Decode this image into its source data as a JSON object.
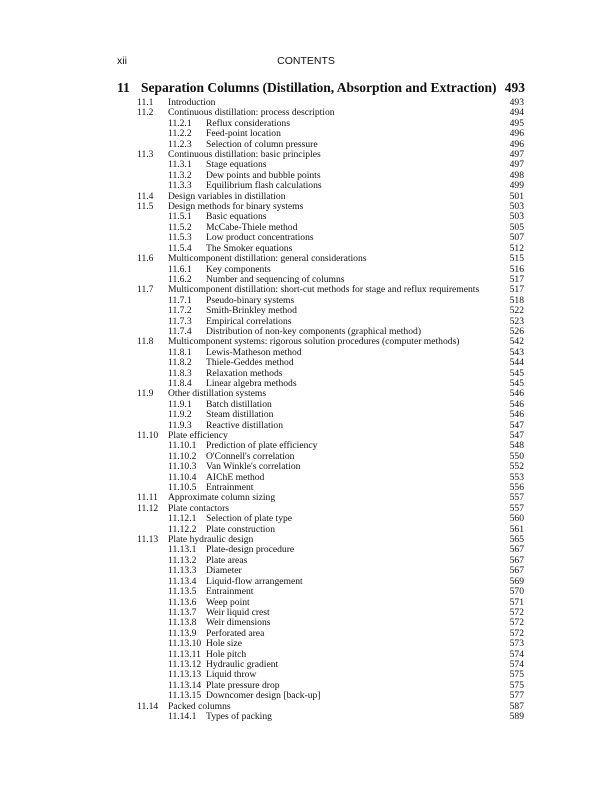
{
  "header": {
    "page_number": "xii",
    "running_title": "CONTENTS"
  },
  "chapter": {
    "number": "11",
    "title": "Separation Columns (Distillation, Absorption and Extraction)",
    "page": "493"
  },
  "entries": [
    {
      "level": 2,
      "num": "11.1",
      "title": "Introduction",
      "page": "493"
    },
    {
      "level": 2,
      "num": "11.2",
      "title": "Continuous distillation: process description",
      "page": "494"
    },
    {
      "level": 3,
      "num": "11.2.1",
      "title": "Reflux considerations",
      "page": "495"
    },
    {
      "level": 3,
      "num": "11.2.2",
      "title": "Feed-point location",
      "page": "496"
    },
    {
      "level": 3,
      "num": "11.2.3",
      "title": "Selection of column pressure",
      "page": "496"
    },
    {
      "level": 2,
      "num": "11.3",
      "title": "Continuous distillation: basic principles",
      "page": "497"
    },
    {
      "level": 3,
      "num": "11.3.1",
      "title": "Stage equations",
      "page": "497"
    },
    {
      "level": 3,
      "num": "11.3.2",
      "title": "Dew points and bubble points",
      "page": "498"
    },
    {
      "level": 3,
      "num": "11.3.3",
      "title": "Equilibrium flash calculations",
      "page": "499"
    },
    {
      "level": 2,
      "num": "11.4",
      "title": "Design variables in distillation",
      "page": "501"
    },
    {
      "level": 2,
      "num": "11.5",
      "title": "Design methods for binary systems",
      "page": "503"
    },
    {
      "level": 3,
      "num": "11.5.1",
      "title": "Basic equations",
      "page": "503"
    },
    {
      "level": 3,
      "num": "11.5.2",
      "title": "McCabe-Thiele method",
      "page": "505"
    },
    {
      "level": 3,
      "num": "11.5.3",
      "title": "Low product concentrations",
      "page": "507"
    },
    {
      "level": 3,
      "num": "11.5.4",
      "title": "The Smoker equations",
      "page": "512"
    },
    {
      "level": 2,
      "num": "11.6",
      "title": "Multicomponent distillation: general considerations",
      "page": "515"
    },
    {
      "level": 3,
      "num": "11.6.1",
      "title": "Key components",
      "page": "516"
    },
    {
      "level": 3,
      "num": "11.6.2",
      "title": "Number and sequencing of columns",
      "page": "517"
    },
    {
      "level": 2,
      "num": "11.7",
      "title": "Multicomponent distillation: short-cut methods for stage and reflux requirements",
      "page": "517"
    },
    {
      "level": 3,
      "num": "11.7.1",
      "title": "Pseudo-binary systems",
      "page": "518"
    },
    {
      "level": 3,
      "num": "11.7.2",
      "title": "Smith-Brinkley method",
      "page": "522"
    },
    {
      "level": 3,
      "num": "11.7.3",
      "title": "Empirical correlations",
      "page": "523"
    },
    {
      "level": 3,
      "num": "11.7.4",
      "title": "Distribution of non-key components (graphical method)",
      "page": "526"
    },
    {
      "level": 2,
      "num": "11.8",
      "title": "Multicomponent systems: rigorous solution procedures (computer methods)",
      "page": "542"
    },
    {
      "level": 3,
      "num": "11.8.1",
      "title": "Lewis-Matheson method",
      "page": "543"
    },
    {
      "level": 3,
      "num": "11.8.2",
      "title": "Thiele-Geddes method",
      "page": "544"
    },
    {
      "level": 3,
      "num": "11.8.3",
      "title": "Relaxation methods",
      "page": "545"
    },
    {
      "level": 3,
      "num": "11.8.4",
      "title": "Linear algebra methods",
      "page": "545"
    },
    {
      "level": 2,
      "num": "11.9",
      "title": "Other distillation systems",
      "page": "546"
    },
    {
      "level": 3,
      "num": "11.9.1",
      "title": "Batch distillation",
      "page": "546"
    },
    {
      "level": 3,
      "num": "11.9.2",
      "title": "Steam distillation",
      "page": "546"
    },
    {
      "level": 3,
      "num": "11.9.3",
      "title": "Reactive distillation",
      "page": "547"
    },
    {
      "level": 2,
      "num": "11.10",
      "title": "Plate efficiency",
      "page": "547"
    },
    {
      "level": 3,
      "num": "11.10.1",
      "title": "Prediction of plate efficiency",
      "page": "548"
    },
    {
      "level": 3,
      "num": "11.10.2",
      "title": "O'Connell's correlation",
      "page": "550"
    },
    {
      "level": 3,
      "num": "11.10.3",
      "title": "Van Winkle's correlation",
      "page": "552"
    },
    {
      "level": 3,
      "num": "11.10.4",
      "title": "AIChE method",
      "page": "553"
    },
    {
      "level": 3,
      "num": "11.10.5",
      "title": "Entrainment",
      "page": "556"
    },
    {
      "level": 2,
      "num": "11.11",
      "title": "Approximate column sizing",
      "page": "557"
    },
    {
      "level": 2,
      "num": "11.12",
      "title": "Plate contactors",
      "page": "557"
    },
    {
      "level": 3,
      "num": "11.12.1",
      "title": "Selection of plate type",
      "page": "560"
    },
    {
      "level": 3,
      "num": "11.12.2",
      "title": "Plate construction",
      "page": "561"
    },
    {
      "level": 2,
      "num": "11.13",
      "title": "Plate hydraulic design",
      "page": "565"
    },
    {
      "level": 3,
      "num": "11.13.1",
      "title": "Plate-design procedure",
      "page": "567"
    },
    {
      "level": 3,
      "num": "11.13.2",
      "title": "Plate areas",
      "page": "567"
    },
    {
      "level": 3,
      "num": "11.13.3",
      "title": "Diameter",
      "page": "567"
    },
    {
      "level": 3,
      "num": "11.13.4",
      "title": "Liquid-flow arrangement",
      "page": "569"
    },
    {
      "level": 3,
      "num": "11.13.5",
      "title": "Entrainment",
      "page": "570"
    },
    {
      "level": 3,
      "num": "11.13.6",
      "title": "Weep point",
      "page": "571"
    },
    {
      "level": 3,
      "num": "11.13.7",
      "title": "Weir liquid crest",
      "page": "572"
    },
    {
      "level": 3,
      "num": "11.13.8",
      "title": "Weir dimensions",
      "page": "572"
    },
    {
      "level": 3,
      "num": "11.13.9",
      "title": "Perforated area",
      "page": "572"
    },
    {
      "level": 3,
      "num": "11.13.10",
      "title": "Hole size",
      "page": "573"
    },
    {
      "level": 3,
      "num": "11.13.11",
      "title": "Hole pitch",
      "page": "574"
    },
    {
      "level": 3,
      "num": "11.13.12",
      "title": "Hydraulic gradient",
      "page": "574"
    },
    {
      "level": 3,
      "num": "11.13.13",
      "title": "Liquid throw",
      "page": "575"
    },
    {
      "level": 3,
      "num": "11.13.14",
      "title": "Plate pressure drop",
      "page": "575"
    },
    {
      "level": 3,
      "num": "11.13.15",
      "title": "Downcomer design [back-up]",
      "page": "577"
    },
    {
      "level": 2,
      "num": "11.14",
      "title": "Packed columns",
      "page": "587"
    },
    {
      "level": 3,
      "num": "11.14.1",
      "title": "Types of packing",
      "page": "589"
    }
  ]
}
